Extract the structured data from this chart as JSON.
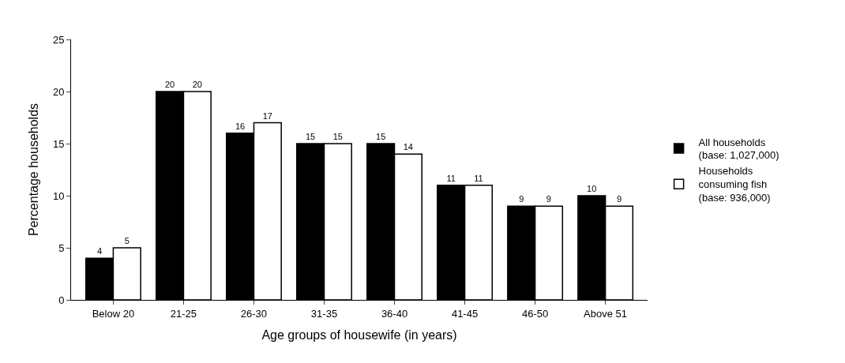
{
  "chart_data": {
    "type": "bar",
    "xlabel": "Age groups of housewife (in years)",
    "ylabel": "Percentage households",
    "categories": [
      "Below 20",
      "21-25",
      "26-30",
      "31-35",
      "36-40",
      "41-45",
      "46-50",
      "Above 51"
    ],
    "series": [
      {
        "name": "All households\n(base: 1,027,000)",
        "color": "#000000",
        "values": [
          4,
          20,
          16,
          15,
          15,
          11,
          9,
          10
        ]
      },
      {
        "name": "Households\nconsuming fish\n(base: 936,000)",
        "color": "#ffffff",
        "values": [
          5,
          20,
          17,
          15,
          14,
          11,
          9,
          9
        ]
      }
    ],
    "ylim": [
      0,
      25
    ],
    "yticks": [
      0,
      5,
      10,
      15,
      20,
      25
    ],
    "grid": false,
    "legend": "right",
    "data_labels": true
  }
}
